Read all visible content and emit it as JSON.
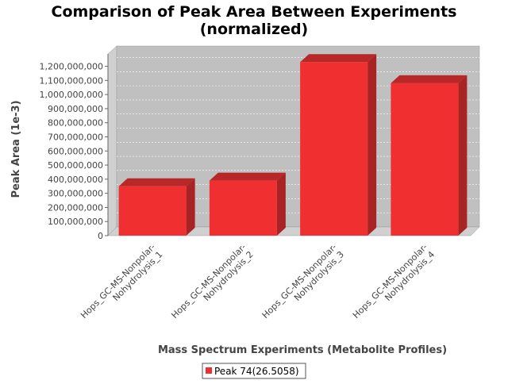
{
  "chart_data": {
    "type": "bar",
    "title_line1": "Comparison of Peak Area Between Experiments",
    "title_line2": "(normalized)",
    "xlabel": "Mass Spectrum Experiments (Metabolite Profiles)",
    "ylabel": "Peak Area (1e-3)",
    "categories": [
      [
        "Hops_GC-MS-Nonpolar-",
        "Nohydrolysis_1"
      ],
      [
        "Hops_GC-MS-Nonpolar-",
        "Nohydrolysis_2"
      ],
      [
        "Hops_GC-MS-Nonpolar-",
        "Nohydrolysis_3"
      ],
      [
        "Hops_GC-MS-Nonpolar-",
        "Nohydrolysis_4"
      ]
    ],
    "series": [
      {
        "name": "Peak 74(26.5058)",
        "values": [
          350000000,
          390000000,
          1230000000,
          1080000000
        ]
      }
    ],
    "ylim": [
      0,
      1200000000
    ],
    "yticks": [
      "0",
      "100,000,000",
      "200,000,000",
      "300,000,000",
      "400,000,000",
      "500,000,000",
      "600,000,000",
      "700,000,000",
      "800,000,000",
      "900,000,000",
      "1,000,000,000",
      "1,100,000,000",
      "1,200,000,000"
    ],
    "grid": true,
    "legend_position": "bottom",
    "colors": {
      "bar": "#f03030",
      "bar_top": "#b82828",
      "bar_side": "#a82424",
      "plot_bg": "#c0c0c0",
      "wall": "#d0d0d0"
    }
  }
}
